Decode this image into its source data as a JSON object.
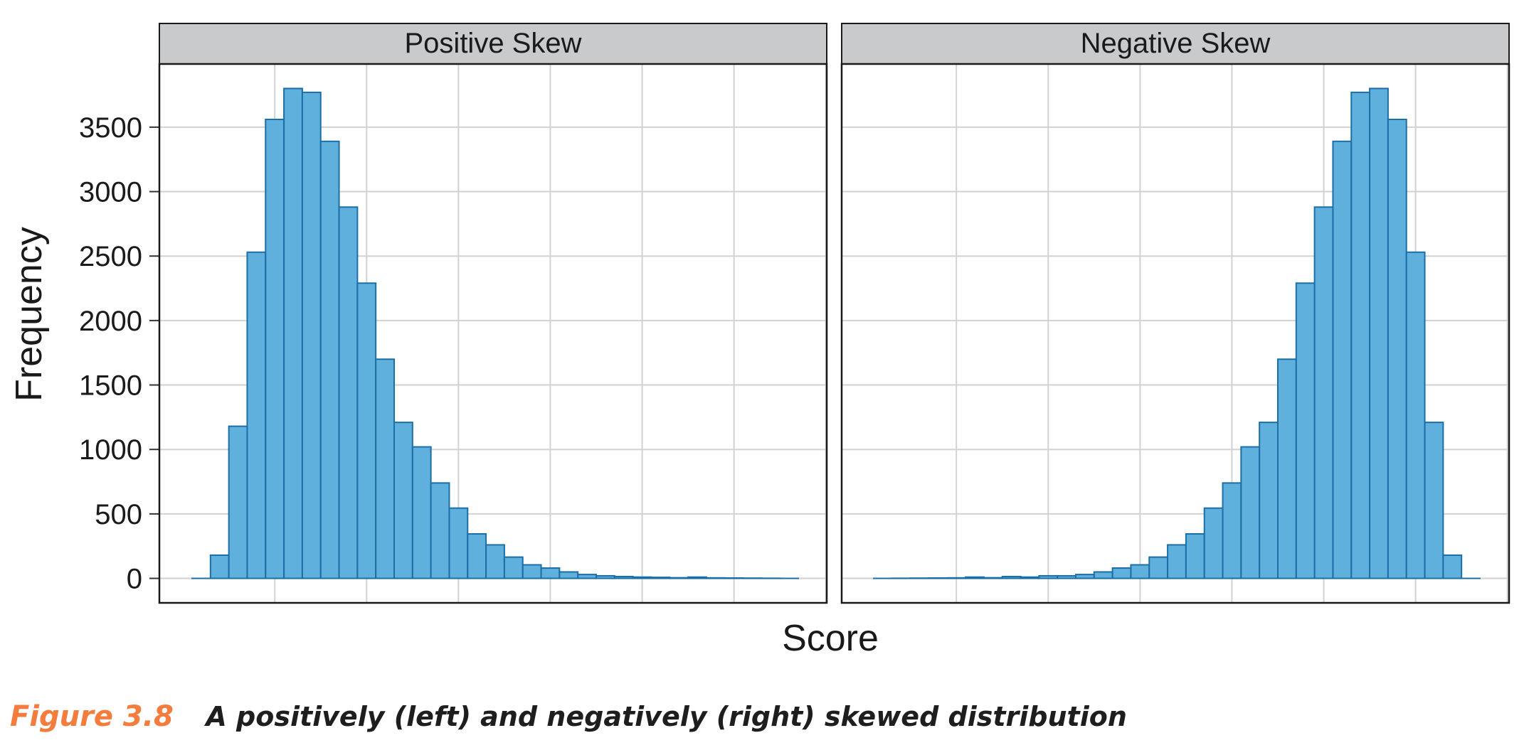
{
  "chart_data": {
    "type": "bar",
    "ylabel": "Frequency",
    "xlabel": "Score",
    "ylim": [
      -190,
      3990
    ],
    "y_ticks": [
      0,
      500,
      1000,
      1500,
      2000,
      2500,
      3000,
      3500
    ],
    "grid": true,
    "panels": [
      {
        "title": "Positive Skew",
        "values": [
          0,
          180,
          1180,
          2530,
          3560,
          3800,
          3770,
          3390,
          2880,
          2290,
          1700,
          1210,
          1020,
          740,
          545,
          345,
          260,
          165,
          105,
          80,
          50,
          30,
          20,
          14,
          10,
          8,
          5,
          10,
          4,
          3,
          2,
          1,
          0
        ]
      },
      {
        "title": "Negative Skew",
        "values": [
          0,
          1,
          2,
          3,
          4,
          10,
          5,
          14,
          10,
          20,
          20,
          30,
          50,
          80,
          105,
          165,
          260,
          345,
          545,
          740,
          1020,
          1210,
          1700,
          2290,
          2880,
          3390,
          3770,
          3800,
          3560,
          2530,
          1210,
          180,
          0
        ]
      }
    ],
    "bar_color": "#5fb0dd",
    "bar_edge_color": "#1c6fa6",
    "strip_color": "#c9cacc"
  },
  "caption": {
    "label": "Figure 3.8",
    "text": "A positively (left) and negatively (right) skewed distribution"
  }
}
